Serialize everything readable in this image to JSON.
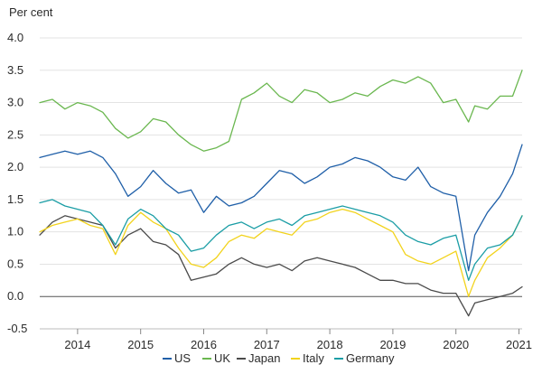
{
  "chart_data": {
    "type": "line",
    "unit_label": "Per cent",
    "ylim": [
      -0.5,
      4.0
    ],
    "y_ticks": [
      "4.0",
      "3.5",
      "3.0",
      "2.5",
      "2.0",
      "1.5",
      "1.0",
      "0.5",
      "0.0",
      "-0.5"
    ],
    "y_tick_values": [
      4.0,
      3.5,
      3.0,
      2.5,
      2.0,
      1.5,
      1.0,
      0.5,
      0.0,
      -0.5
    ],
    "x_ticks": [
      "2014",
      "2015",
      "2016",
      "2017",
      "2018",
      "2019",
      "2020",
      "2021"
    ],
    "x_tick_values": [
      2014,
      2015,
      2016,
      2017,
      2018,
      2019,
      2020,
      2021
    ],
    "xlim": [
      2013.4,
      2021.05
    ],
    "grid": true,
    "legend_position": "bottom",
    "series": [
      {
        "name": "US",
        "color": "#1f5fa8",
        "x": [
          2013.4,
          2013.6,
          2013.8,
          2014.0,
          2014.2,
          2014.4,
          2014.6,
          2014.8,
          2015.0,
          2015.2,
          2015.4,
          2015.6,
          2015.8,
          2016.0,
          2016.2,
          2016.4,
          2016.6,
          2016.8,
          2017.0,
          2017.2,
          2017.4,
          2017.6,
          2017.8,
          2018.0,
          2018.2,
          2018.4,
          2018.6,
          2018.8,
          2019.0,
          2019.2,
          2019.4,
          2019.6,
          2019.8,
          2020.0,
          2020.2,
          2020.3,
          2020.5,
          2020.7,
          2020.9,
          2021.05
        ],
        "y": [
          2.15,
          2.2,
          2.25,
          2.2,
          2.25,
          2.15,
          1.9,
          1.55,
          1.7,
          1.95,
          1.75,
          1.6,
          1.65,
          1.3,
          1.55,
          1.4,
          1.45,
          1.55,
          1.75,
          1.95,
          1.9,
          1.75,
          1.85,
          2.0,
          2.05,
          2.15,
          2.1,
          2.0,
          1.85,
          1.8,
          2.0,
          1.7,
          1.6,
          1.55,
          0.4,
          0.95,
          1.3,
          1.55,
          1.9,
          2.35
        ]
      },
      {
        "name": "UK",
        "color": "#6ab74f",
        "x": [
          2013.4,
          2013.6,
          2013.8,
          2014.0,
          2014.2,
          2014.4,
          2014.6,
          2014.8,
          2015.0,
          2015.2,
          2015.4,
          2015.6,
          2015.8,
          2016.0,
          2016.2,
          2016.4,
          2016.6,
          2016.8,
          2017.0,
          2017.2,
          2017.4,
          2017.6,
          2017.8,
          2018.0,
          2018.2,
          2018.4,
          2018.6,
          2018.8,
          2019.0,
          2019.2,
          2019.4,
          2019.6,
          2019.8,
          2020.0,
          2020.2,
          2020.3,
          2020.5,
          2020.7,
          2020.9,
          2021.05
        ],
        "y": [
          3.0,
          3.05,
          2.9,
          3.0,
          2.95,
          2.85,
          2.6,
          2.45,
          2.55,
          2.75,
          2.7,
          2.5,
          2.35,
          2.25,
          2.3,
          2.4,
          3.05,
          3.15,
          3.3,
          3.1,
          3.0,
          3.2,
          3.15,
          3.0,
          3.05,
          3.15,
          3.1,
          3.25,
          3.35,
          3.3,
          3.4,
          3.3,
          3.0,
          3.05,
          2.7,
          2.95,
          2.9,
          3.1,
          3.1,
          3.5
        ]
      },
      {
        "name": "Japan",
        "color": "#4a4a4a",
        "x": [
          2013.4,
          2013.6,
          2013.8,
          2014.0,
          2014.2,
          2014.4,
          2014.6,
          2014.8,
          2015.0,
          2015.2,
          2015.4,
          2015.6,
          2015.8,
          2016.0,
          2016.2,
          2016.4,
          2016.6,
          2016.8,
          2017.0,
          2017.2,
          2017.4,
          2017.6,
          2017.8,
          2018.0,
          2018.2,
          2018.4,
          2018.6,
          2018.8,
          2019.0,
          2019.2,
          2019.4,
          2019.6,
          2019.8,
          2020.0,
          2020.2,
          2020.3,
          2020.5,
          2020.7,
          2020.9,
          2021.05
        ],
        "y": [
          0.95,
          1.15,
          1.25,
          1.2,
          1.15,
          1.1,
          0.75,
          0.95,
          1.05,
          0.85,
          0.8,
          0.65,
          0.25,
          0.3,
          0.35,
          0.5,
          0.6,
          0.5,
          0.45,
          0.5,
          0.4,
          0.55,
          0.6,
          0.55,
          0.5,
          0.45,
          0.35,
          0.25,
          0.25,
          0.2,
          0.2,
          0.1,
          0.05,
          0.05,
          -0.3,
          -0.1,
          -0.05,
          0.0,
          0.05,
          0.15
        ]
      },
      {
        "name": "Italy",
        "color": "#f2d31c",
        "x": [
          2013.4,
          2013.6,
          2013.8,
          2014.0,
          2014.2,
          2014.4,
          2014.6,
          2014.8,
          2015.0,
          2015.2,
          2015.4,
          2015.6,
          2015.8,
          2016.0,
          2016.2,
          2016.4,
          2016.6,
          2016.8,
          2017.0,
          2017.2,
          2017.4,
          2017.6,
          2017.8,
          2018.0,
          2018.2,
          2018.4,
          2018.6,
          2018.8,
          2019.0,
          2019.2,
          2019.4,
          2019.6,
          2019.8,
          2020.0,
          2020.2,
          2020.3,
          2020.5,
          2020.7,
          2020.9,
          2021.05
        ],
        "y": [
          1.0,
          1.1,
          1.15,
          1.2,
          1.1,
          1.05,
          0.65,
          1.1,
          1.3,
          1.15,
          1.05,
          0.75,
          0.5,
          0.45,
          0.6,
          0.85,
          0.95,
          0.9,
          1.05,
          1.0,
          0.95,
          1.15,
          1.2,
          1.3,
          1.35,
          1.3,
          1.2,
          1.1,
          1.0,
          0.65,
          0.55,
          0.5,
          0.6,
          0.7,
          0.0,
          0.25,
          0.6,
          0.75,
          0.95,
          1.25
        ]
      },
      {
        "name": "Germany",
        "color": "#1a9da5",
        "x": [
          2013.4,
          2013.6,
          2013.8,
          2014.0,
          2014.2,
          2014.4,
          2014.6,
          2014.8,
          2015.0,
          2015.2,
          2015.4,
          2015.6,
          2015.8,
          2016.0,
          2016.2,
          2016.4,
          2016.6,
          2016.8,
          2017.0,
          2017.2,
          2017.4,
          2017.6,
          2017.8,
          2018.0,
          2018.2,
          2018.4,
          2018.6,
          2018.8,
          2019.0,
          2019.2,
          2019.4,
          2019.6,
          2019.8,
          2020.0,
          2020.2,
          2020.3,
          2020.5,
          2020.7,
          2020.9,
          2021.05
        ],
        "y": [
          1.45,
          1.5,
          1.4,
          1.35,
          1.3,
          1.1,
          0.8,
          1.2,
          1.35,
          1.25,
          1.05,
          0.95,
          0.7,
          0.75,
          0.95,
          1.1,
          1.15,
          1.05,
          1.15,
          1.2,
          1.1,
          1.25,
          1.3,
          1.35,
          1.4,
          1.35,
          1.3,
          1.25,
          1.15,
          0.95,
          0.85,
          0.8,
          0.9,
          0.95,
          0.25,
          0.5,
          0.75,
          0.8,
          0.95,
          1.25
        ]
      }
    ]
  }
}
